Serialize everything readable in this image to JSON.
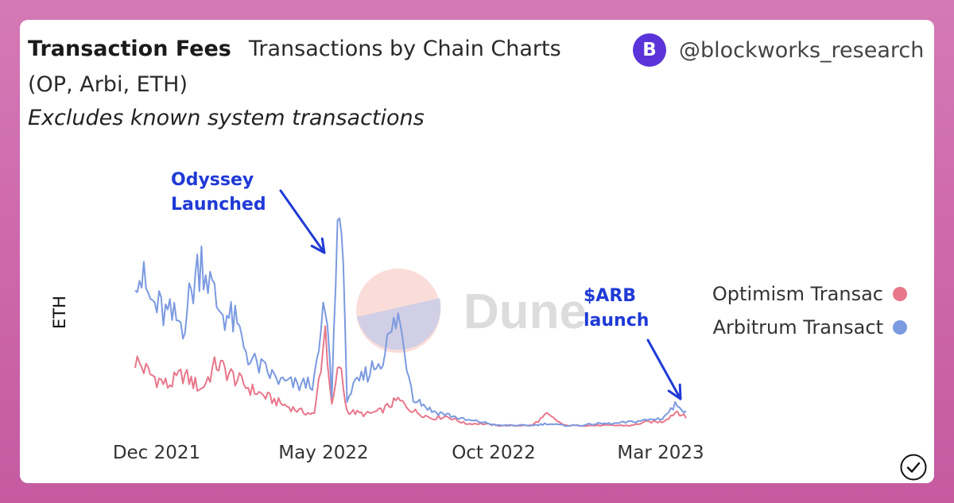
{
  "header": {
    "title": "Transaction Fees",
    "subtitle": "Transactions by Chain Charts (OP, Arbi, ETH)",
    "note": "Excludes known system transactions"
  },
  "brand": {
    "logo_letter": "B",
    "handle": "@blockworks_research",
    "logo_color": "#5a34d8"
  },
  "watermark": {
    "text": "Dune"
  },
  "chart_data": {
    "type": "line",
    "ylabel": "ETH",
    "x_ticks": [
      "Dec 2021",
      "May 2022",
      "Oct 2022",
      "Mar 2023"
    ],
    "legend_position": "right",
    "grid": false,
    "y_axis_values_shown": false,
    "series": [
      {
        "name": "Optimism Transac",
        "color": "#e8778b",
        "x": [
          "2021-11-01",
          "2021-11-15",
          "2021-12-01",
          "2021-12-15",
          "2022-01-01",
          "2022-01-15",
          "2022-02-01",
          "2022-02-15",
          "2022-03-01",
          "2022-03-15",
          "2022-04-01",
          "2022-04-15",
          "2022-04-25",
          "2022-05-01",
          "2022-05-08",
          "2022-05-15",
          "2022-06-01",
          "2022-06-15",
          "2022-07-01",
          "2022-07-15",
          "2022-08-01",
          "2022-08-15",
          "2022-09-01",
          "2022-09-15",
          "2022-10-01",
          "2022-10-15",
          "2022-11-01",
          "2022-11-15",
          "2022-12-01",
          "2022-12-15",
          "2023-01-01",
          "2023-01-15",
          "2023-02-01",
          "2023-02-15",
          "2023-03-01",
          "2023-03-15",
          "2023-03-23"
        ],
        "values": [
          0.38,
          0.3,
          0.24,
          0.3,
          0.22,
          0.36,
          0.28,
          0.22,
          0.18,
          0.14,
          0.1,
          0.08,
          0.55,
          0.12,
          0.36,
          0.1,
          0.08,
          0.1,
          0.16,
          0.1,
          0.06,
          0.07,
          0.03,
          0.03,
          0.02,
          0.02,
          0.02,
          0.08,
          0.02,
          0.02,
          0.02,
          0.02,
          0.02,
          0.04,
          0.04,
          0.1,
          0.06
        ]
      },
      {
        "name": "Arbitrum Transact",
        "color": "#7b9ae0",
        "x": [
          "2021-11-01",
          "2021-11-15",
          "2021-12-01",
          "2021-12-15",
          "2022-01-01",
          "2022-01-15",
          "2022-02-01",
          "2022-02-15",
          "2022-03-01",
          "2022-03-15",
          "2022-04-01",
          "2022-04-15",
          "2022-04-25",
          "2022-05-01",
          "2022-05-08",
          "2022-05-15",
          "2022-06-01",
          "2022-06-15",
          "2022-07-01",
          "2022-07-15",
          "2022-08-01",
          "2022-08-15",
          "2022-09-01",
          "2022-09-15",
          "2022-10-01",
          "2022-10-15",
          "2022-11-01",
          "2022-11-15",
          "2022-12-01",
          "2022-12-15",
          "2023-01-01",
          "2023-01-15",
          "2023-02-01",
          "2023-02-15",
          "2023-03-01",
          "2023-03-15",
          "2023-03-23"
        ],
        "values": [
          0.92,
          0.7,
          0.62,
          0.58,
          0.96,
          0.68,
          0.58,
          0.38,
          0.32,
          0.26,
          0.24,
          0.26,
          0.68,
          0.2,
          1.4,
          0.18,
          0.3,
          0.38,
          0.62,
          0.18,
          0.1,
          0.08,
          0.05,
          0.04,
          0.02,
          0.02,
          0.02,
          0.03,
          0.02,
          0.02,
          0.03,
          0.03,
          0.04,
          0.05,
          0.06,
          0.14,
          0.1
        ]
      }
    ],
    "annotations": [
      {
        "text_lines": [
          "Odyssey",
          "Launched"
        ],
        "date": "2022-05-08",
        "color": "#1f3ad6"
      },
      {
        "text_lines": [
          "$ARB",
          "launch"
        ],
        "date": "2023-03-17",
        "color": "#1f3ad6"
      }
    ]
  }
}
